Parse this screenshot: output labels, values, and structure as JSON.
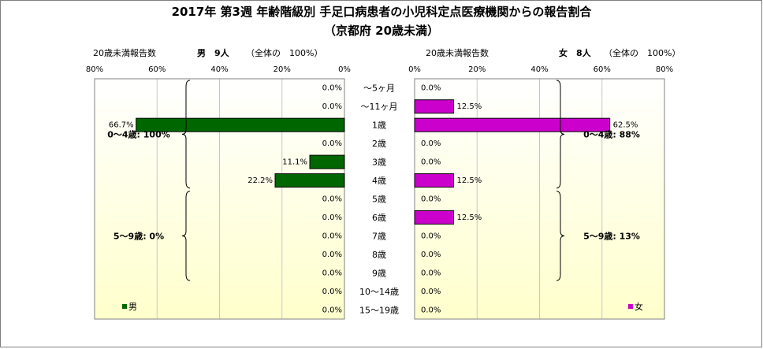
{
  "chart_data": {
    "type": "bar",
    "title": "2017年 第3週 年齢階級別 手足口病患者の小児科定点医療機関からの報告割合",
    "subtitle": "（京都府 20歳未満）",
    "categories": [
      "～5ヶ月",
      "～11ヶ月",
      "1歳",
      "2歳",
      "3歳",
      "4歳",
      "5歳",
      "6歳",
      "7歳",
      "8歳",
      "9歳",
      "10～14歳",
      "15～19歳"
    ],
    "axis_ticks": [
      "80%",
      "60%",
      "40%",
      "20%",
      "0%"
    ],
    "axis_ticks_right": [
      "0%",
      "20%",
      "40%",
      "60%",
      "80%"
    ],
    "xlim": [
      0,
      80
    ],
    "series": [
      {
        "name": "男",
        "axis_caption": "20歳未満報告数",
        "header_label": "男　9人",
        "header_note": "（全体の　100%）",
        "color": "#006600",
        "values": [
          0.0,
          0.0,
          66.7,
          0.0,
          11.1,
          22.2,
          0.0,
          0.0,
          0.0,
          0.0,
          0.0,
          0.0,
          0.0
        ],
        "value_labels": [
          "0.0%",
          "0.0%",
          "66.7%",
          "0.0%",
          "11.1%",
          "22.2%",
          "0.0%",
          "0.0%",
          "0.0%",
          "0.0%",
          "0.0%",
          "0.0%",
          "0.0%"
        ],
        "groups": [
          {
            "label": "0～4歳: 100%",
            "from": 0,
            "to": 5
          },
          {
            "label": "5～9歳: 0%",
            "from": 6,
            "to": 10
          }
        ]
      },
      {
        "name": "女",
        "axis_caption": "20歳未満報告数",
        "header_label": "女　8人",
        "header_note": "（全体の　100%）",
        "color": "#cc00cc",
        "values": [
          0.0,
          12.5,
          62.5,
          0.0,
          0.0,
          12.5,
          0.0,
          12.5,
          0.0,
          0.0,
          0.0,
          0.0,
          0.0
        ],
        "value_labels": [
          "0.0%",
          "12.5%",
          "62.5%",
          "0.0%",
          "0.0%",
          "12.5%",
          "0.0%",
          "12.5%",
          "0.0%",
          "0.0%",
          "0.0%",
          "0.0%",
          "0.0%"
        ],
        "groups": [
          {
            "label": "0～4歳: 88%",
            "from": 0,
            "to": 5
          },
          {
            "label": "5～9歳: 13%",
            "from": 6,
            "to": 10
          }
        ]
      }
    ]
  }
}
